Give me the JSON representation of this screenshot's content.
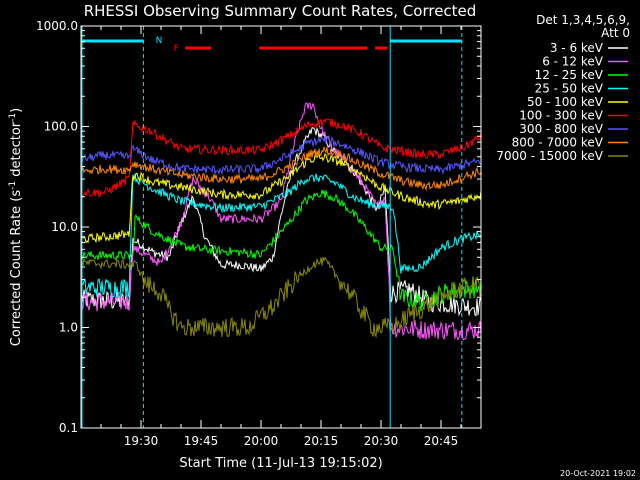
{
  "chart_data": {
    "type": "line",
    "title": "RHESSI Observing Summary Count Rates, Corrected",
    "xlabel": "Start Time (11-Jul-13 19:15:02)",
    "ylabel_main": "Corrected Count Rate (s",
    "ylabel_sup1": "-1",
    "ylabel_mid": " detector",
    "ylabel_sup2": "-1",
    "ylabel_end": ")",
    "y_scale": "log",
    "ylim": [
      0.1,
      1000
    ],
    "xlim_minutes": [
      0,
      100
    ],
    "x_ticks": [
      {
        "m": 15,
        "label": "19:30"
      },
      {
        "m": 30,
        "label": "19:45"
      },
      {
        "m": 45,
        "label": "20:00"
      },
      {
        "m": 60,
        "label": "20:15"
      },
      {
        "m": 75,
        "label": "20:30"
      },
      {
        "m": 90,
        "label": "20:45"
      }
    ],
    "y_ticks": [
      {
        "v": 0.1,
        "label": "0.1"
      },
      {
        "v": 1,
        "label": "1.0"
      },
      {
        "v": 10,
        "label": "10.0"
      },
      {
        "v": 100,
        "label": "100.0"
      },
      {
        "v": 1000,
        "label": "1000.0"
      }
    ],
    "legend_header": [
      "Det 1,3,4,5,6,9,",
      "Att 0"
    ],
    "legend_placement": "right",
    "footer_date": "20-Oct-2021 19:02",
    "flags": {
      "N": "N",
      "F": "F"
    },
    "series": [
      {
        "name": "3 - 6 keV",
        "color": "#ffffff",
        "points": [
          [
            0,
            1.9
          ],
          [
            12,
            1.8
          ],
          [
            13,
            7.5
          ],
          [
            18,
            5.6
          ],
          [
            22,
            5
          ],
          [
            25,
            11
          ],
          [
            28,
            20
          ],
          [
            31,
            8
          ],
          [
            35,
            4.2
          ],
          [
            40,
            4.2
          ],
          [
            45,
            3.8
          ],
          [
            48,
            5
          ],
          [
            50,
            13
          ],
          [
            53,
            40
          ],
          [
            56,
            70
          ],
          [
            58,
            95
          ],
          [
            61,
            75
          ],
          [
            64,
            52
          ],
          [
            68,
            37
          ],
          [
            71,
            24
          ],
          [
            74,
            15
          ],
          [
            76,
            24
          ],
          [
            77.5,
            2.2
          ],
          [
            82,
            2.4
          ],
          [
            87,
            1.8
          ],
          [
            100,
            1.6
          ]
        ]
      },
      {
        "name": "6 - 12 keV",
        "color": "#ff55ff",
        "points": [
          [
            0,
            1.8
          ],
          [
            12,
            1.8
          ],
          [
            13,
            6.2
          ],
          [
            20,
            4.3
          ],
          [
            25,
            11
          ],
          [
            28,
            30
          ],
          [
            32,
            20
          ],
          [
            35,
            12
          ],
          [
            40,
            12
          ],
          [
            45,
            12
          ],
          [
            50,
            18
          ],
          [
            53,
            60
          ],
          [
            56,
            155
          ],
          [
            58,
            165
          ],
          [
            60,
            95
          ],
          [
            63,
            60
          ],
          [
            67,
            42
          ],
          [
            71,
            25
          ],
          [
            74,
            16
          ],
          [
            76,
            20
          ],
          [
            77.5,
            1.0
          ],
          [
            86,
            0.95
          ],
          [
            100,
            0.95
          ]
        ]
      },
      {
        "name": "12 - 25 keV",
        "color": "#00ff00",
        "points": [
          [
            0,
            5.2
          ],
          [
            13,
            5.2
          ],
          [
            13.5,
            12.5
          ],
          [
            18,
            9
          ],
          [
            25,
            6.5
          ],
          [
            30,
            6
          ],
          [
            40,
            5.6
          ],
          [
            45,
            5.3
          ],
          [
            52,
            11
          ],
          [
            56,
            18
          ],
          [
            60,
            22
          ],
          [
            63,
            20
          ],
          [
            67,
            15
          ],
          [
            71,
            10
          ],
          [
            75,
            6.2
          ],
          [
            78,
            6
          ],
          [
            80,
            2
          ],
          [
            85,
            1.8
          ],
          [
            92,
            2.3
          ],
          [
            100,
            2.5
          ]
        ]
      },
      {
        "name": "25 - 50 keV",
        "color": "#00ffff",
        "points": [
          [
            0,
            2.5
          ],
          [
            12,
            2.5
          ],
          [
            13,
            32
          ],
          [
            18,
            24
          ],
          [
            25,
            18
          ],
          [
            35,
            15.5
          ],
          [
            45,
            16
          ],
          [
            52,
            22
          ],
          [
            56,
            30
          ],
          [
            60,
            31
          ],
          [
            64,
            27
          ],
          [
            68,
            20
          ],
          [
            72,
            17
          ],
          [
            76,
            16
          ],
          [
            78,
            16
          ],
          [
            80,
            3.8
          ],
          [
            85,
            4
          ],
          [
            90,
            6.2
          ],
          [
            95,
            7.6
          ],
          [
            100,
            8.4
          ]
        ]
      },
      {
        "name": "50 - 100 keV",
        "color": "#ffff00",
        "points": [
          [
            0,
            7.5
          ],
          [
            12,
            8.5
          ],
          [
            13,
            34
          ],
          [
            18,
            28
          ],
          [
            25,
            25
          ],
          [
            35,
            21
          ],
          [
            45,
            21
          ],
          [
            52,
            32
          ],
          [
            57,
            47
          ],
          [
            61,
            49
          ],
          [
            65,
            44
          ],
          [
            70,
            34
          ],
          [
            74,
            26
          ],
          [
            78,
            22
          ],
          [
            82,
            19
          ],
          [
            88,
            16.5
          ],
          [
            94,
            18
          ],
          [
            100,
            21
          ]
        ]
      },
      {
        "name": "100 - 300 keV",
        "color": "#ff0000",
        "points": [
          [
            0,
            22
          ],
          [
            6,
            22
          ],
          [
            12,
            30
          ],
          [
            13,
            104
          ],
          [
            17,
            92
          ],
          [
            25,
            60
          ],
          [
            35,
            58
          ],
          [
            45,
            58
          ],
          [
            52,
            80
          ],
          [
            57,
            105
          ],
          [
            61,
            113
          ],
          [
            65,
            104
          ],
          [
            70,
            85
          ],
          [
            75,
            62
          ],
          [
            80,
            57
          ],
          [
            85,
            52
          ],
          [
            90,
            53
          ],
          [
            96,
            63
          ],
          [
            100,
            80
          ]
        ]
      },
      {
        "name": "300 - 800 keV",
        "color": "#5555ff",
        "points": [
          [
            0,
            47
          ],
          [
            6,
            52
          ],
          [
            12,
            50
          ],
          [
            13,
            60
          ],
          [
            18,
            46
          ],
          [
            25,
            38
          ],
          [
            35,
            37
          ],
          [
            45,
            38
          ],
          [
            52,
            52
          ],
          [
            57,
            69
          ],
          [
            61,
            74
          ],
          [
            65,
            67
          ],
          [
            70,
            55
          ],
          [
            75,
            44
          ],
          [
            80,
            40
          ],
          [
            85,
            38
          ],
          [
            90,
            37
          ],
          [
            96,
            42
          ],
          [
            100,
            45
          ]
        ]
      },
      {
        "name": "800 - 7000 keV",
        "color": "#ff8800",
        "points": [
          [
            0,
            36
          ],
          [
            6,
            38
          ],
          [
            12,
            37
          ],
          [
            13,
            43
          ],
          [
            20,
            36
          ],
          [
            25,
            33
          ],
          [
            35,
            30
          ],
          [
            45,
            30
          ],
          [
            52,
            40
          ],
          [
            57,
            53
          ],
          [
            61,
            58
          ],
          [
            65,
            53
          ],
          [
            70,
            42
          ],
          [
            75,
            34
          ],
          [
            80,
            29
          ],
          [
            85,
            26
          ],
          [
            90,
            26
          ],
          [
            96,
            32
          ],
          [
            100,
            36
          ]
        ]
      },
      {
        "name": "7000 - 15000 keV",
        "color": "#888800",
        "points": [
          [
            0,
            4.4
          ],
          [
            14,
            4.2
          ],
          [
            16,
            2.8
          ],
          [
            20,
            2.2
          ],
          [
            22,
            1.5
          ],
          [
            25,
            1.0
          ],
          [
            30,
            1.0
          ],
          [
            42,
            1.0
          ],
          [
            45,
            1.3
          ],
          [
            48,
            1.6
          ],
          [
            52,
            2.5
          ],
          [
            55,
            3.3
          ],
          [
            58,
            4.3
          ],
          [
            61,
            4.6
          ],
          [
            64,
            3.2
          ],
          [
            67,
            2.3
          ],
          [
            70,
            1.5
          ],
          [
            73,
            1.0
          ],
          [
            78,
            1.0
          ],
          [
            82,
            1.3
          ],
          [
            88,
            1.8
          ],
          [
            94,
            2.4
          ],
          [
            100,
            2.7
          ]
        ]
      }
    ]
  }
}
